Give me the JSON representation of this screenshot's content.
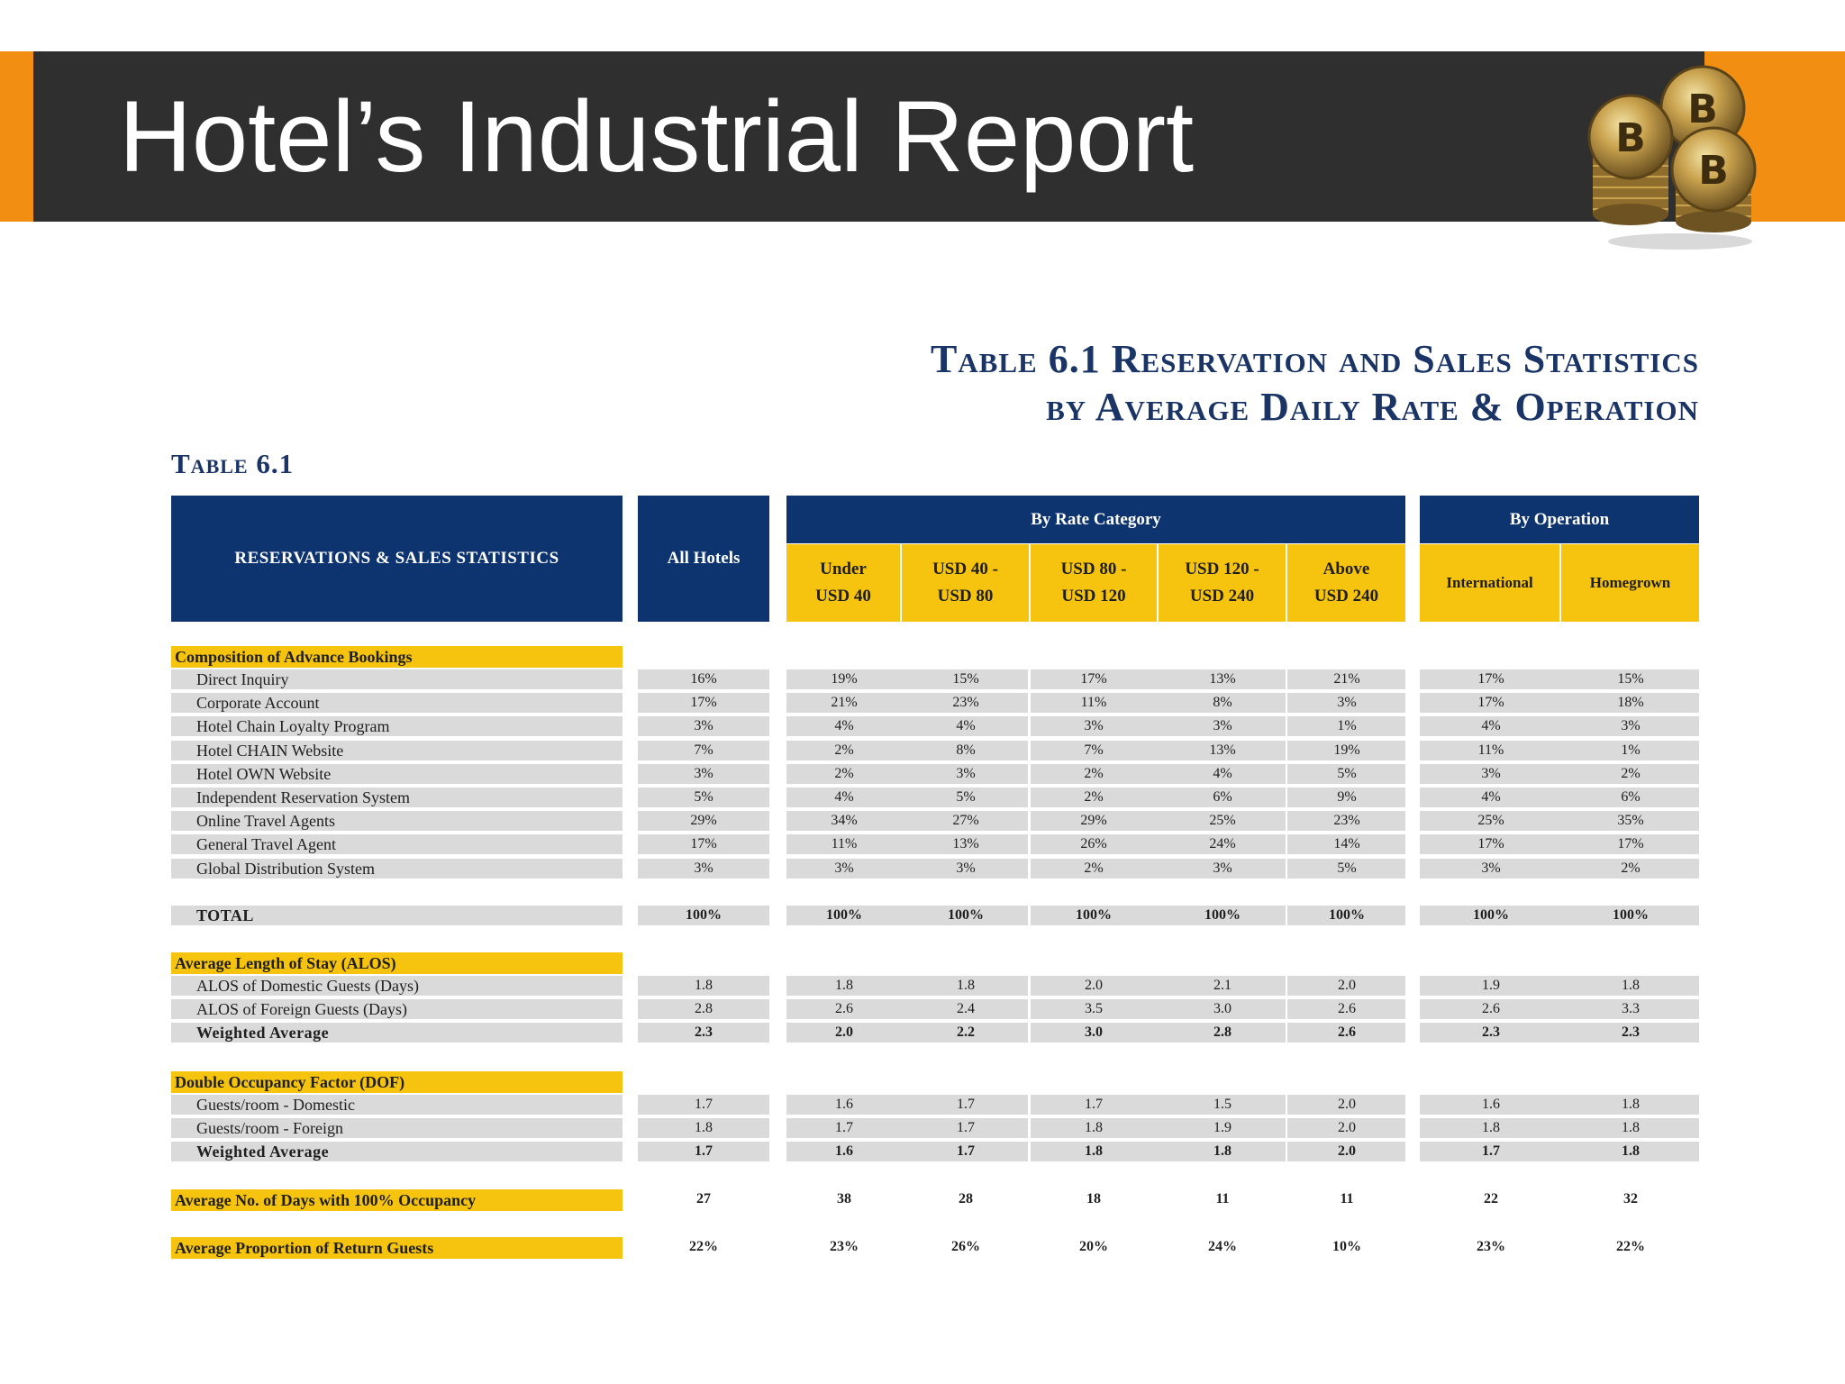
{
  "slide": {
    "title": "Hotel’s Industrial Report",
    "image_icon": "bitcoin-coins-icon"
  },
  "table": {
    "main_title_line1": "Table 6.1 Reservation and Sales Statistics",
    "main_title_line2": "by Average Daily Rate & Operation",
    "label": "Table 6.1",
    "header": {
      "stats": "RESERVATIONS & SALES STATISTICS",
      "all_hotels": "All Hotels",
      "by_rate": "By Rate Category",
      "by_operation": "By Operation",
      "columns": [
        [
          "Under",
          "USD 40"
        ],
        [
          "USD 40 -",
          "USD 80"
        ],
        [
          "USD 80 -",
          "USD 120"
        ],
        [
          "USD 120 -",
          "USD 240"
        ],
        [
          "Above",
          "USD 240"
        ],
        [
          "International",
          ""
        ],
        [
          "Homegrown",
          ""
        ]
      ]
    },
    "sections": [
      {
        "title": "Composition of Advance Bookings",
        "rows": [
          {
            "label": "Direct Inquiry",
            "values": [
              "16%",
              "19%",
              "15%",
              "17%",
              "13%",
              "21%",
              "17%",
              "15%"
            ]
          },
          {
            "label": "Corporate Account",
            "values": [
              "17%",
              "21%",
              "23%",
              "11%",
              "8%",
              "3%",
              "17%",
              "18%"
            ]
          },
          {
            "label": "Hotel Chain Loyalty Program",
            "values": [
              "3%",
              "4%",
              "4%",
              "3%",
              "3%",
              "1%",
              "4%",
              "3%"
            ]
          },
          {
            "label": "Hotel CHAIN Website",
            "values": [
              "7%",
              "2%",
              "8%",
              "7%",
              "13%",
              "19%",
              "11%",
              "1%"
            ]
          },
          {
            "label": "Hotel OWN Website",
            "values": [
              "3%",
              "2%",
              "3%",
              "2%",
              "4%",
              "5%",
              "3%",
              "2%"
            ]
          },
          {
            "label": "Independent Reservation System",
            "values": [
              "5%",
              "4%",
              "5%",
              "2%",
              "6%",
              "9%",
              "4%",
              "6%"
            ]
          },
          {
            "label": "Online Travel Agents",
            "values": [
              "29%",
              "34%",
              "27%",
              "29%",
              "25%",
              "23%",
              "25%",
              "35%"
            ]
          },
          {
            "label": "General Travel Agent",
            "values": [
              "17%",
              "11%",
              "13%",
              "26%",
              "24%",
              "14%",
              "17%",
              "17%"
            ]
          },
          {
            "label": "Global Distribution System",
            "values": [
              "3%",
              "3%",
              "3%",
              "2%",
              "3%",
              "5%",
              "3%",
              "2%"
            ]
          }
        ]
      }
    ],
    "total": {
      "label": "TOTAL",
      "values": [
        "100%",
        "100%",
        "100%",
        "100%",
        "100%",
        "100%",
        "100%",
        "100%"
      ]
    },
    "alos": {
      "title": "Average Length of Stay (ALOS)",
      "rows": [
        {
          "label": "ALOS of Domestic Guests (Days)",
          "values": [
            "1.8",
            "1.8",
            "1.8",
            "2.0",
            "2.1",
            "2.0",
            "1.9",
            "1.8"
          ]
        },
        {
          "label": "ALOS of Foreign Guests (Days)",
          "values": [
            "2.8",
            "2.6",
            "2.4",
            "3.5",
            "3.0",
            "2.6",
            "2.6",
            "3.3"
          ]
        },
        {
          "label": "Weighted Average",
          "values": [
            "2.3",
            "2.0",
            "2.2",
            "3.0",
            "2.8",
            "2.6",
            "2.3",
            "2.3"
          ]
        }
      ]
    },
    "dof": {
      "title": "Double Occupancy Factor (DOF)",
      "rows": [
        {
          "label": "Guests/room - Domestic",
          "values": [
            "1.7",
            "1.6",
            "1.7",
            "1.7",
            "1.5",
            "2.0",
            "1.6",
            "1.8"
          ]
        },
        {
          "label": "Guests/room - Foreign",
          "values": [
            "1.8",
            "1.7",
            "1.7",
            "1.8",
            "1.9",
            "2.0",
            "1.8",
            "1.8"
          ]
        },
        {
          "label": "Weighted Average",
          "values": [
            "1.7",
            "1.6",
            "1.7",
            "1.8",
            "1.8",
            "2.0",
            "1.7",
            "1.8"
          ]
        }
      ]
    },
    "full_occupancy": {
      "label": "Average No. of Days with 100% Occupancy",
      "values": [
        "27",
        "38",
        "28",
        "18",
        "11",
        "11",
        "22",
        "32"
      ]
    },
    "return_guests": {
      "label": "Average Proportion of Return Guests",
      "values": [
        "22%",
        "23%",
        "26%",
        "20%",
        "24%",
        "10%",
        "23%",
        "22%"
      ]
    }
  },
  "colors": {
    "orange": "#f28e12",
    "dark": "#2f2f2f",
    "navy": "#0e3470",
    "gold": "#f6c40f",
    "row_grey": "#dadada"
  }
}
